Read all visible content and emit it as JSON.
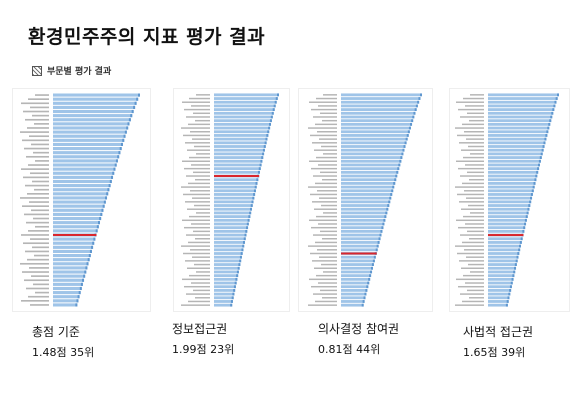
{
  "page": {
    "title": "환경민주주의 지표 평가 결과",
    "subtitle": "부문별 평가 결과"
  },
  "panels": [
    {
      "caption": "총점 기준",
      "score": "1.48점 35위",
      "rows": 52,
      "highlight_rank": 35
    },
    {
      "caption": "정보접근권",
      "score": "1.99점 23위",
      "rows": 58,
      "highlight_rank": 23
    },
    {
      "caption": "의사결정 참여권",
      "score": "0.81점 44위",
      "rows": 58,
      "highlight_rank": 44
    },
    {
      "caption": "사법적 접근권",
      "score": "1.65점 39위",
      "rows": 58,
      "highlight_rank": 39
    }
  ],
  "colors": {
    "bar": "#9fc4e8",
    "bar_edge": "#5f97cf",
    "highlight": "#d9262c",
    "label": "#b5b5b5"
  }
}
